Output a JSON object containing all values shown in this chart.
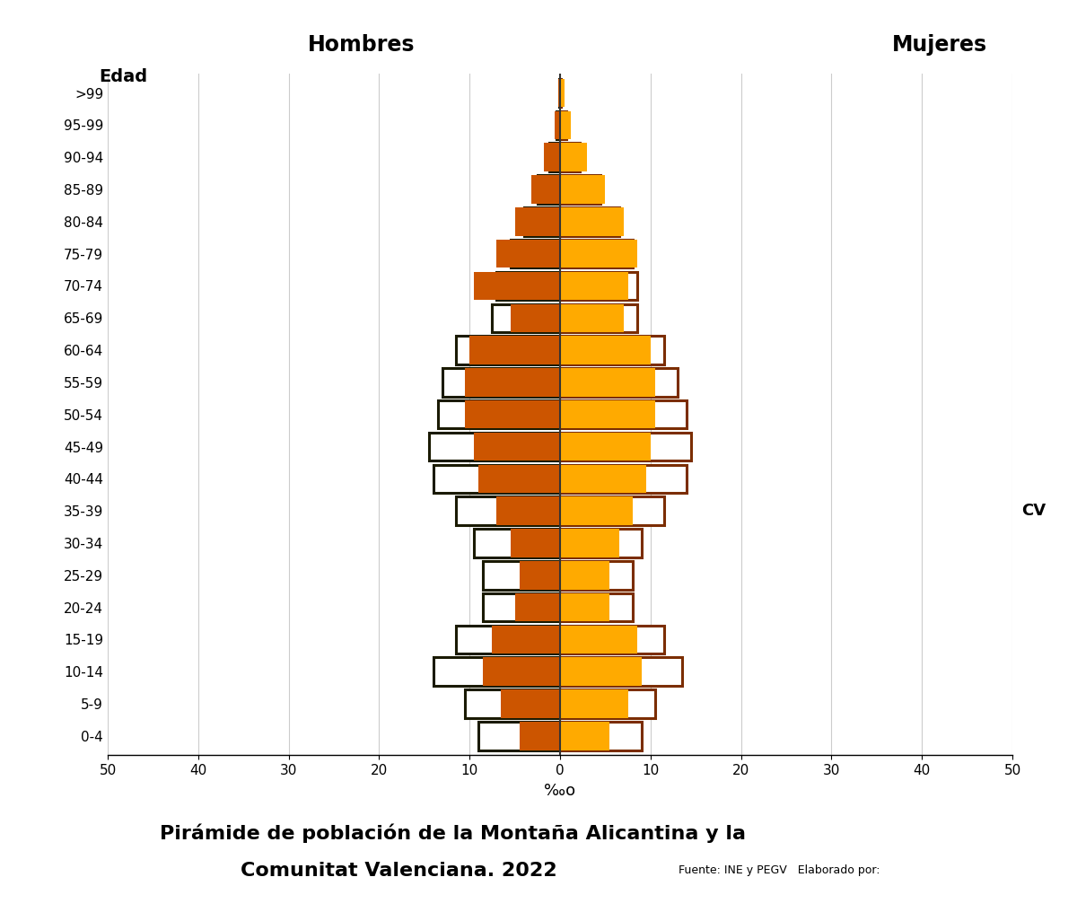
{
  "age_groups": [
    "0-4",
    "5-9",
    "10-14",
    "15-19",
    "20-24",
    "25-29",
    "30-34",
    "35-39",
    "40-44",
    "45-49",
    "50-54",
    "55-59",
    "60-64",
    "65-69",
    "70-74",
    "75-79",
    "80-84",
    "85-89",
    "90-94",
    "95-99",
    ">99"
  ],
  "MA_hombres": [
    4.5,
    6.5,
    8.5,
    7.5,
    5.0,
    4.5,
    5.5,
    7.0,
    9.0,
    9.5,
    10.5,
    10.5,
    10.0,
    5.5,
    9.5,
    7.0,
    5.0,
    3.2,
    1.8,
    0.6,
    0.15
  ],
  "MA_mujeres": [
    5.5,
    7.5,
    9.0,
    8.5,
    5.5,
    5.5,
    6.5,
    8.0,
    9.5,
    10.0,
    10.5,
    10.5,
    10.0,
    7.0,
    7.5,
    8.5,
    7.0,
    5.0,
    3.0,
    1.2,
    0.5
  ],
  "CV_hombres": [
    9.0,
    10.5,
    14.0,
    11.5,
    8.5,
    8.5,
    9.5,
    11.5,
    14.0,
    14.5,
    13.5,
    13.0,
    11.5,
    7.5,
    7.0,
    5.5,
    4.0,
    2.5,
    1.2,
    0.35,
    0.06
  ],
  "CV_mujeres": [
    9.0,
    10.5,
    13.5,
    11.5,
    8.0,
    8.0,
    9.0,
    11.5,
    14.0,
    14.5,
    14.0,
    13.0,
    11.5,
    8.5,
    8.5,
    8.0,
    6.5,
    4.5,
    2.2,
    0.7,
    0.12
  ],
  "MA_color_hombres": "#CC5500",
  "MA_color_mujeres": "#FFAA00",
  "CV_edge_hombres": "#1a1a00",
  "CV_edge_mujeres": "#7B2D00",
  "title_line1": "Pirámide de población de la Montaña Alicantina y la",
  "title_line2": "Comunitat Valenciana. 2022",
  "fuente_text": "Fuente: INE y PEGV",
  "elaborado_text": "Elaborado por:",
  "xlabel": "‰o",
  "ylabel_left": "Hombres",
  "ylabel_right": "Mujeres",
  "age_label": "Edad",
  "cv_label": "CV",
  "xlim": 50
}
